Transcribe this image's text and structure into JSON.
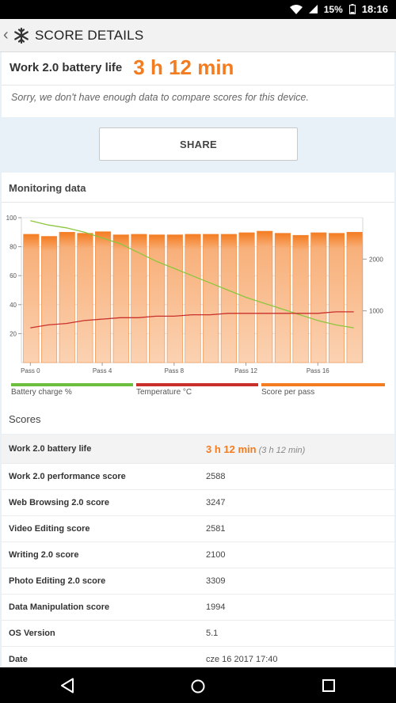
{
  "status": {
    "battery": "15%",
    "time": "18:16"
  },
  "app_bar": {
    "title": "SCORE DETAILS"
  },
  "summary": {
    "label": "Work 2.0 battery life",
    "value": "3 h 12 min",
    "note": "Sorry, we don't have enough data to compare scores for this device."
  },
  "share": {
    "label": "SHARE"
  },
  "monitoring": {
    "header": "Monitoring data",
    "legend": [
      {
        "label": "Battery charge %",
        "color": "#6cbf3c"
      },
      {
        "label": "Temperature °C",
        "color": "#c9302c"
      },
      {
        "label": "Score per pass",
        "color": "#f47c20"
      }
    ]
  },
  "chart_data": {
    "type": "bar",
    "categories": [
      "Pass 0",
      "Pass 1",
      "Pass 2",
      "Pass 3",
      "Pass 4",
      "Pass 5",
      "Pass 6",
      "Pass 7",
      "Pass 8",
      "Pass 9",
      "Pass 10",
      "Pass 11",
      "Pass 12",
      "Pass 13",
      "Pass 14",
      "Pass 15",
      "Pass 16",
      "Pass 17",
      "Pass 18"
    ],
    "x_tick_labels": [
      "Pass 0",
      "Pass 4",
      "Pass 8",
      "Pass 12",
      "Pass 16"
    ],
    "left_axis": {
      "ticks": [
        "100",
        "80",
        "60",
        "40",
        "20"
      ],
      "ylim": [
        0,
        100
      ]
    },
    "right_axis": {
      "ticks": [
        "2000",
        "1000"
      ],
      "ylim": [
        0,
        2800
      ]
    },
    "series": [
      {
        "name": "Score per pass",
        "axis": "right",
        "values": [
          2480,
          2440,
          2520,
          2500,
          2530,
          2470,
          2480,
          2470,
          2470,
          2480,
          2480,
          2480,
          2510,
          2540,
          2500,
          2460,
          2510,
          2500,
          2520
        ]
      },
      {
        "name": "Battery charge %",
        "axis": "left",
        "values": [
          98,
          95,
          93,
          90,
          86,
          82,
          76,
          70,
          65,
          60,
          55,
          50,
          45,
          41,
          37,
          33,
          29,
          26,
          24
        ]
      },
      {
        "name": "Temperature °C",
        "axis": "left",
        "values": [
          24,
          26,
          27,
          29,
          30,
          31,
          31,
          32,
          32,
          33,
          33,
          34,
          34,
          34,
          34,
          34,
          34,
          35,
          35
        ]
      }
    ]
  },
  "scores": {
    "header": "Scores",
    "rows": [
      {
        "label": "Work 2.0 battery life",
        "value": "3 h 12 min",
        "sub": "(3 h 12 min)"
      },
      {
        "label": "Work 2.0 performance score",
        "value": "2588"
      },
      {
        "label": "Web Browsing 2.0 score",
        "value": "3247"
      },
      {
        "label": "Video Editing score",
        "value": "2581"
      },
      {
        "label": "Writing 2.0 score",
        "value": "2100"
      },
      {
        "label": "Photo Editing 2.0 score",
        "value": "3309"
      },
      {
        "label": "Data Manipulation score",
        "value": "1994"
      },
      {
        "label": "OS Version",
        "value": "5.1"
      },
      {
        "label": "Date",
        "value": "cze 16 2017 17:40"
      }
    ]
  }
}
